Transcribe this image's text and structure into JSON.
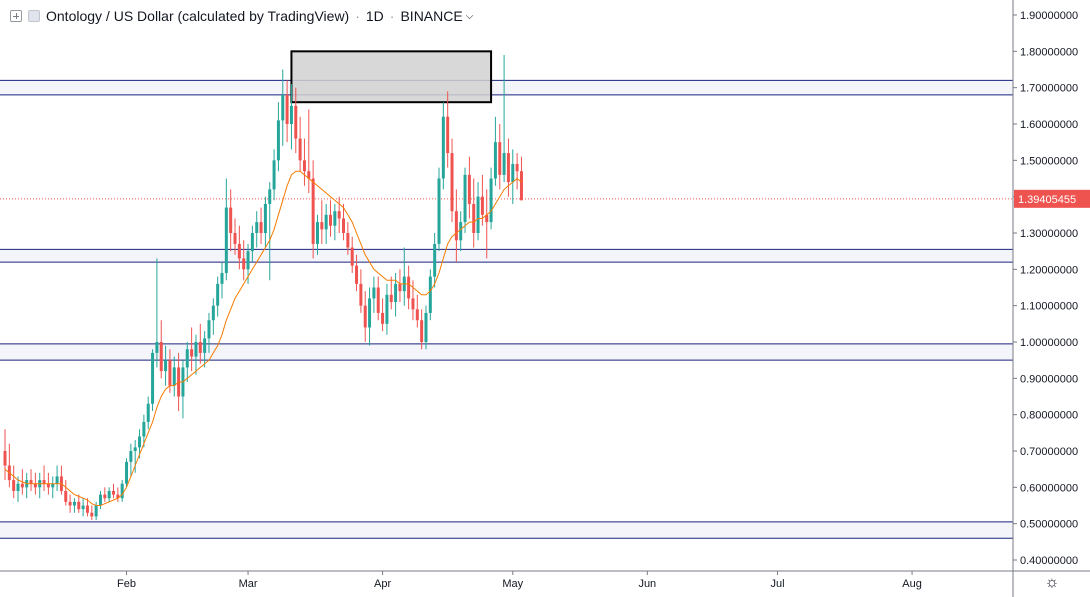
{
  "header": {
    "symbol_title": "Ontology / US Dollar (calculated by TradingView)",
    "interval": "1D",
    "exchange": "BINANCE",
    "separator": "·"
  },
  "icons": {
    "add": "plus-square-icon",
    "hide": "square-icon",
    "dropdown": "chevron-down-icon",
    "settings": "gear-icon"
  },
  "settings_glyph": "☼",
  "colors": {
    "up": "#26a69a",
    "down": "#ef5350",
    "ma": "#f57c00",
    "zone_line": "#1a237e",
    "zone_fill": "#f3f5fb",
    "box_fill": "#d1d1d1",
    "box_border": "#000000",
    "price_marker": "#ef5350"
  },
  "chart_data": {
    "type": "candlestick",
    "title": "Ontology / US Dollar (calculated by TradingView) · 1D · BINANCE",
    "x_tick_labels": [
      "Feb",
      "Mar",
      "Apr",
      "May",
      "Jun",
      "Jul",
      "Aug"
    ],
    "y_tick_labels": [
      "1.90000000",
      "1.80000000",
      "1.70000000",
      "1.60000000",
      "1.50000000",
      "1.40000000",
      "1.30000000",
      "1.20000000",
      "1.10000000",
      "1.00000000",
      "0.90000000",
      "0.80000000",
      "0.70000000",
      "0.60000000",
      "0.50000000",
      "0.40000000"
    ],
    "ylim": [
      0.37,
      1.94
    ],
    "last_price": 1.39405455,
    "last_price_label": "1.39405455",
    "grid": false,
    "legend": "top-left",
    "zones": [
      {
        "low": 1.68,
        "high": 1.72
      },
      {
        "low": 1.22,
        "high": 1.255
      },
      {
        "low": 0.95,
        "high": 0.995
      },
      {
        "low": 0.46,
        "high": 0.505
      }
    ],
    "resistance_box": {
      "start_day": 66,
      "end_day": 112,
      "low": 1.66,
      "high": 1.8
    },
    "candles": [
      [
        0.7,
        0.76,
        0.62,
        0.66
      ],
      [
        0.66,
        0.72,
        0.6,
        0.62
      ],
      [
        0.62,
        0.66,
        0.57,
        0.59
      ],
      [
        0.59,
        0.63,
        0.56,
        0.61
      ],
      [
        0.61,
        0.65,
        0.58,
        0.6
      ],
      [
        0.6,
        0.64,
        0.57,
        0.62
      ],
      [
        0.62,
        0.65,
        0.59,
        0.61
      ],
      [
        0.61,
        0.64,
        0.58,
        0.6
      ],
      [
        0.6,
        0.64,
        0.57,
        0.62
      ],
      [
        0.62,
        0.66,
        0.59,
        0.61
      ],
      [
        0.61,
        0.64,
        0.58,
        0.6
      ],
      [
        0.6,
        0.63,
        0.57,
        0.61
      ],
      [
        0.61,
        0.66,
        0.59,
        0.63
      ],
      [
        0.63,
        0.66,
        0.58,
        0.59
      ],
      [
        0.59,
        0.62,
        0.55,
        0.56
      ],
      [
        0.56,
        0.58,
        0.53,
        0.55
      ],
      [
        0.55,
        0.57,
        0.53,
        0.56
      ],
      [
        0.56,
        0.58,
        0.53,
        0.54
      ],
      [
        0.54,
        0.57,
        0.52,
        0.55
      ],
      [
        0.55,
        0.57,
        0.52,
        0.53
      ],
      [
        0.53,
        0.55,
        0.51,
        0.52
      ],
      [
        0.52,
        0.56,
        0.51,
        0.55
      ],
      [
        0.55,
        0.59,
        0.54,
        0.58
      ],
      [
        0.58,
        0.6,
        0.56,
        0.57
      ],
      [
        0.57,
        0.6,
        0.56,
        0.59
      ],
      [
        0.59,
        0.61,
        0.57,
        0.58
      ],
      [
        0.58,
        0.6,
        0.56,
        0.57
      ],
      [
        0.57,
        0.62,
        0.56,
        0.61
      ],
      [
        0.61,
        0.68,
        0.6,
        0.67
      ],
      [
        0.67,
        0.72,
        0.63,
        0.7
      ],
      [
        0.7,
        0.73,
        0.64,
        0.71
      ],
      [
        0.71,
        0.76,
        0.68,
        0.74
      ],
      [
        0.74,
        0.8,
        0.71,
        0.78
      ],
      [
        0.78,
        0.85,
        0.76,
        0.83
      ],
      [
        0.83,
        0.98,
        0.81,
        0.97
      ],
      [
        0.97,
        1.23,
        0.93,
        1.0
      ],
      [
        1.0,
        1.06,
        0.9,
        0.92
      ],
      [
        0.92,
        0.99,
        0.88,
        0.95
      ],
      [
        0.95,
        0.98,
        0.86,
        0.88
      ],
      [
        0.88,
        0.96,
        0.85,
        0.93
      ],
      [
        0.93,
        0.97,
        0.81,
        0.85
      ],
      [
        0.85,
        0.95,
        0.79,
        0.93
      ],
      [
        0.93,
        1.0,
        0.89,
        0.98
      ],
      [
        0.98,
        1.04,
        0.92,
        0.96
      ],
      [
        0.96,
        1.02,
        0.91,
        1.0
      ],
      [
        1.0,
        1.05,
        0.94,
        0.97
      ],
      [
        0.97,
        1.03,
        0.93,
        1.01
      ],
      [
        1.01,
        1.08,
        0.97,
        1.06
      ],
      [
        1.06,
        1.12,
        1.02,
        1.1
      ],
      [
        1.1,
        1.18,
        1.07,
        1.16
      ],
      [
        1.16,
        1.22,
        1.12,
        1.19
      ],
      [
        1.19,
        1.45,
        1.17,
        1.37
      ],
      [
        1.37,
        1.42,
        1.25,
        1.3
      ],
      [
        1.3,
        1.34,
        1.24,
        1.27
      ],
      [
        1.27,
        1.32,
        1.2,
        1.23
      ],
      [
        1.23,
        1.28,
        1.17,
        1.2
      ],
      [
        1.2,
        1.27,
        1.16,
        1.25
      ],
      [
        1.25,
        1.32,
        1.22,
        1.3
      ],
      [
        1.3,
        1.36,
        1.26,
        1.33
      ],
      [
        1.33,
        1.37,
        1.27,
        1.3
      ],
      [
        1.3,
        1.4,
        1.26,
        1.38
      ],
      [
        1.38,
        1.44,
        1.17,
        1.42
      ],
      [
        1.42,
        1.53,
        1.39,
        1.5
      ],
      [
        1.5,
        1.66,
        1.47,
        1.61
      ],
      [
        1.61,
        1.75,
        1.54,
        1.68
      ],
      [
        1.68,
        1.72,
        1.55,
        1.6
      ],
      [
        1.6,
        1.71,
        1.53,
        1.65
      ],
      [
        1.65,
        1.7,
        1.52,
        1.56
      ],
      [
        1.56,
        1.62,
        1.47,
        1.5
      ],
      [
        1.5,
        1.56,
        1.43,
        1.47
      ],
      [
        1.47,
        1.64,
        1.41,
        1.45
      ],
      [
        1.45,
        1.5,
        1.23,
        1.27
      ],
      [
        1.27,
        1.35,
        1.24,
        1.33
      ],
      [
        1.33,
        1.39,
        1.27,
        1.31
      ],
      [
        1.31,
        1.38,
        1.27,
        1.35
      ],
      [
        1.35,
        1.39,
        1.29,
        1.32
      ],
      [
        1.32,
        1.38,
        1.28,
        1.36
      ],
      [
        1.36,
        1.4,
        1.3,
        1.34
      ],
      [
        1.34,
        1.38,
        1.28,
        1.3
      ],
      [
        1.3,
        1.33,
        1.24,
        1.26
      ],
      [
        1.26,
        1.29,
        1.19,
        1.21
      ],
      [
        1.21,
        1.24,
        1.14,
        1.16
      ],
      [
        1.16,
        1.2,
        1.08,
        1.1
      ],
      [
        1.1,
        1.14,
        1.0,
        1.04
      ],
      [
        1.04,
        1.15,
        0.99,
        1.12
      ],
      [
        1.12,
        1.18,
        1.08,
        1.15
      ],
      [
        1.15,
        1.18,
        1.06,
        1.08
      ],
      [
        1.08,
        1.12,
        1.03,
        1.05
      ],
      [
        1.05,
        1.16,
        1.02,
        1.13
      ],
      [
        1.13,
        1.18,
        1.09,
        1.11
      ],
      [
        1.11,
        1.19,
        1.07,
        1.16
      ],
      [
        1.16,
        1.2,
        1.11,
        1.14
      ],
      [
        1.14,
        1.26,
        1.1,
        1.18
      ],
      [
        1.18,
        1.21,
        1.09,
        1.12
      ],
      [
        1.12,
        1.17,
        1.06,
        1.09
      ],
      [
        1.09,
        1.13,
        1.04,
        1.06
      ],
      [
        1.06,
        1.09,
        0.98,
        1.0
      ],
      [
        1.0,
        1.1,
        0.98,
        1.08
      ],
      [
        1.08,
        1.2,
        1.06,
        1.18
      ],
      [
        1.18,
        1.3,
        1.15,
        1.27
      ],
      [
        1.27,
        1.48,
        1.25,
        1.45
      ],
      [
        1.45,
        1.66,
        1.42,
        1.62
      ],
      [
        1.62,
        1.69,
        1.48,
        1.52
      ],
      [
        1.52,
        1.56,
        1.33,
        1.36
      ],
      [
        1.36,
        1.42,
        1.22,
        1.28
      ],
      [
        1.28,
        1.36,
        1.25,
        1.33
      ],
      [
        1.33,
        1.48,
        1.3,
        1.46
      ],
      [
        1.46,
        1.51,
        1.34,
        1.38
      ],
      [
        1.38,
        1.45,
        1.26,
        1.3
      ],
      [
        1.3,
        1.44,
        1.28,
        1.4
      ],
      [
        1.4,
        1.46,
        1.32,
        1.35
      ],
      [
        1.35,
        1.42,
        1.23,
        1.33
      ],
      [
        1.33,
        1.48,
        1.31,
        1.45
      ],
      [
        1.45,
        1.62,
        1.43,
        1.55
      ],
      [
        1.55,
        1.6,
        1.42,
        1.46
      ],
      [
        1.46,
        1.79,
        1.44,
        1.52
      ],
      [
        1.52,
        1.56,
        1.4,
        1.44
      ],
      [
        1.44,
        1.53,
        1.38,
        1.49
      ],
      [
        1.49,
        1.52,
        1.42,
        1.47
      ],
      [
        1.47,
        1.51,
        1.39,
        1.39
      ]
    ],
    "ma": [
      0.65,
      0.64,
      0.63,
      0.62,
      0.615,
      0.61,
      0.61,
      0.61,
      0.61,
      0.61,
      0.61,
      0.61,
      0.61,
      0.61,
      0.6,
      0.59,
      0.58,
      0.575,
      0.57,
      0.565,
      0.555,
      0.55,
      0.55,
      0.555,
      0.56,
      0.565,
      0.57,
      0.58,
      0.6,
      0.63,
      0.66,
      0.69,
      0.72,
      0.75,
      0.78,
      0.82,
      0.85,
      0.87,
      0.88,
      0.88,
      0.89,
      0.89,
      0.9,
      0.91,
      0.92,
      0.93,
      0.94,
      0.95,
      0.97,
      0.99,
      1.02,
      1.06,
      1.09,
      1.12,
      1.14,
      1.16,
      1.18,
      1.2,
      1.22,
      1.24,
      1.26,
      1.28,
      1.31,
      1.35,
      1.39,
      1.43,
      1.46,
      1.47,
      1.47,
      1.46,
      1.45,
      1.44,
      1.43,
      1.42,
      1.41,
      1.4,
      1.39,
      1.38,
      1.37,
      1.35,
      1.33,
      1.3,
      1.27,
      1.24,
      1.22,
      1.2,
      1.19,
      1.18,
      1.17,
      1.17,
      1.17,
      1.16,
      1.16,
      1.16,
      1.15,
      1.14,
      1.13,
      1.13,
      1.14,
      1.16,
      1.19,
      1.23,
      1.27,
      1.29,
      1.3,
      1.31,
      1.32,
      1.33,
      1.33,
      1.34,
      1.34,
      1.35,
      1.36,
      1.38,
      1.4,
      1.42,
      1.43,
      1.44,
      1.45,
      1.44
    ]
  }
}
